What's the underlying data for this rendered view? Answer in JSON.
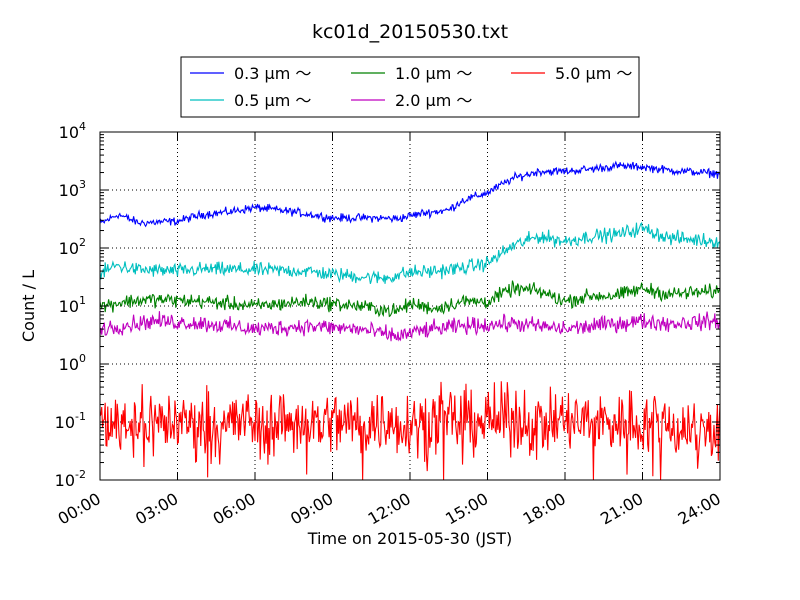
{
  "chart_data": {
    "type": "line",
    "title": "kc01d_20150530.txt",
    "xlabel": "Time on 2015-05-30 (JST)",
    "ylabel": "Count / L",
    "y_scale": "log",
    "ylim": [
      0.01,
      10000
    ],
    "xlim": [
      "00:00",
      "24:00"
    ],
    "x_ticks": [
      "00:00",
      "03:00",
      "06:00",
      "09:00",
      "12:00",
      "15:00",
      "18:00",
      "21:00",
      "24:00"
    ],
    "y_ticks": [
      {
        "base": "10",
        "exp": "-2",
        "value": 0.01
      },
      {
        "base": "10",
        "exp": "-1",
        "value": 0.1
      },
      {
        "base": "10",
        "exp": "0",
        "value": 1
      },
      {
        "base": "10",
        "exp": "1",
        "value": 10
      },
      {
        "base": "10",
        "exp": "2",
        "value": 100
      },
      {
        "base": "10",
        "exp": "3",
        "value": 1000
      },
      {
        "base": "10",
        "exp": "4",
        "value": 10000
      }
    ],
    "grid": true,
    "legend_position": "top-center",
    "series": [
      {
        "name": "0.3 μm ～",
        "color": "#0000ff",
        "noise": 0.035,
        "hours": [
          0,
          0.7,
          1.5,
          3,
          4,
          5,
          6,
          7.5,
          9,
          10.5,
          11.5,
          12.5,
          13.5,
          14,
          15,
          16,
          17,
          18,
          19,
          20,
          21,
          22,
          24
        ],
        "values": [
          260,
          380,
          270,
          290,
          380,
          420,
          500,
          420,
          330,
          330,
          320,
          400,
          450,
          650,
          900,
          1600,
          2100,
          2100,
          2300,
          2600,
          2500,
          2200,
          1900
        ]
      },
      {
        "name": "0.5 μm ～",
        "color": "#00bfbf",
        "noise": 0.06,
        "hours": [
          0,
          0.6,
          1.5,
          3,
          4,
          6,
          8,
          9,
          11,
          12,
          13,
          14,
          15,
          16,
          17,
          18,
          19,
          20,
          21,
          22,
          24
        ],
        "values": [
          35,
          50,
          42,
          40,
          43,
          42,
          40,
          35,
          30,
          38,
          40,
          45,
          55,
          110,
          160,
          130,
          160,
          170,
          220,
          150,
          130
        ]
      },
      {
        "name": "1.0 μm ～",
        "color": "#008000",
        "noise": 0.06,
        "hours": [
          0,
          1,
          2,
          4,
          6,
          8,
          10,
          11.5,
          12,
          13,
          14,
          15,
          16,
          17,
          18,
          19,
          20,
          21,
          22,
          24
        ],
        "values": [
          10,
          12,
          13,
          12,
          10,
          12,
          10,
          8,
          11,
          9,
          12,
          12,
          20,
          18,
          12,
          15,
          15,
          20,
          16,
          18
        ]
      },
      {
        "name": "2.0 μm ～",
        "color": "#bf00bf",
        "noise": 0.07,
        "hours": [
          0,
          2,
          4,
          6,
          8,
          10,
          11.5,
          12.5,
          14,
          16,
          18,
          20,
          21,
          22,
          24
        ],
        "values": [
          4,
          5.5,
          5,
          4,
          4.5,
          4,
          3,
          3.8,
          4.5,
          5,
          4,
          5,
          5.5,
          5,
          5.5
        ]
      },
      {
        "name": "5.0 μm ～",
        "color": "#ff0000",
        "noise": 0.28,
        "hours": [
          0,
          3,
          6,
          9,
          12,
          15,
          18,
          21,
          24
        ],
        "values": [
          0.1,
          0.1,
          0.1,
          0.1,
          0.1,
          0.11,
          0.1,
          0.1,
          0.07
        ]
      }
    ]
  }
}
